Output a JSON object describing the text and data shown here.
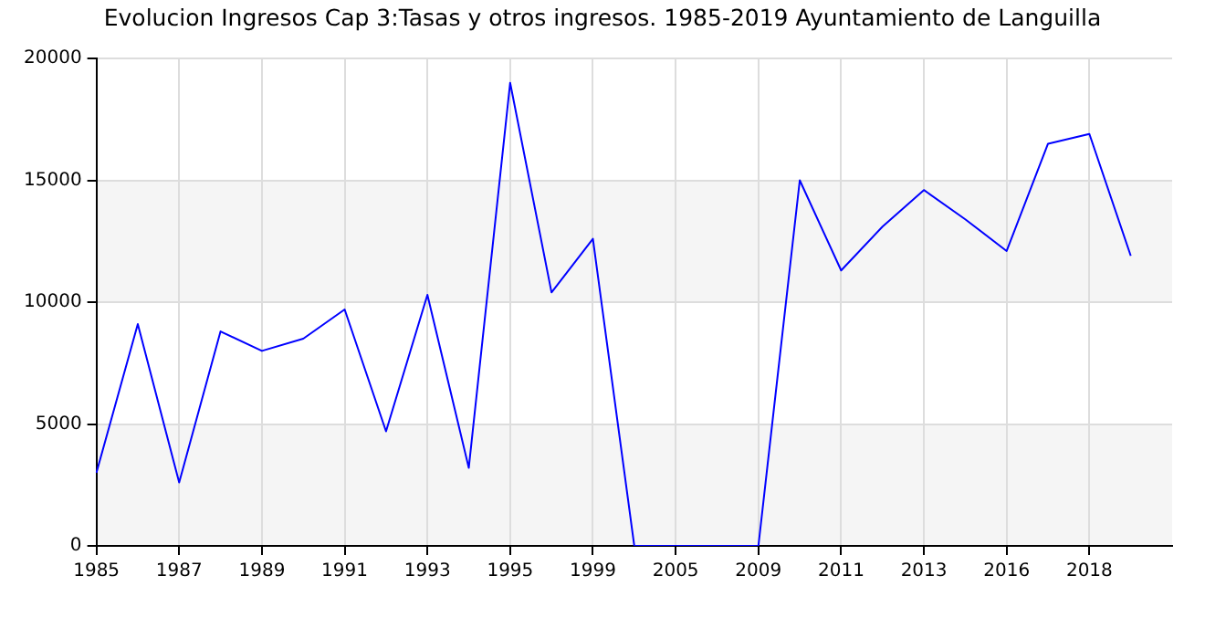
{
  "chart_data": {
    "type": "line",
    "title": "Evolucion Ingresos Cap 3:Tasas y otros ingresos. 1985-2019 Ayuntamiento de Languilla",
    "categories": [
      "1985",
      null,
      "1987",
      null,
      "1989",
      null,
      "1991",
      null,
      "1993",
      null,
      "1995",
      null,
      "1999",
      null,
      "2005",
      null,
      "2009",
      null,
      "2011",
      null,
      "2013",
      null,
      "2016",
      null,
      "2018",
      null,
      null
    ],
    "series": [
      {
        "color": "#0000ff",
        "values": [
          3000,
          9100,
          2600,
          8800,
          8000,
          8500,
          9700,
          4700,
          10300,
          3200,
          19000,
          10400,
          12600,
          0,
          0,
          0,
          0,
          15000,
          11300,
          13100,
          14600,
          13400,
          12100,
          16500,
          16900,
          11900,
          null
        ]
      }
    ],
    "ylim": [
      0,
      20000
    ],
    "yticks": [
      0,
      5000,
      10000,
      15000,
      20000
    ],
    "grid": true,
    "legend": false,
    "marker": "none",
    "line_style": "solid"
  }
}
